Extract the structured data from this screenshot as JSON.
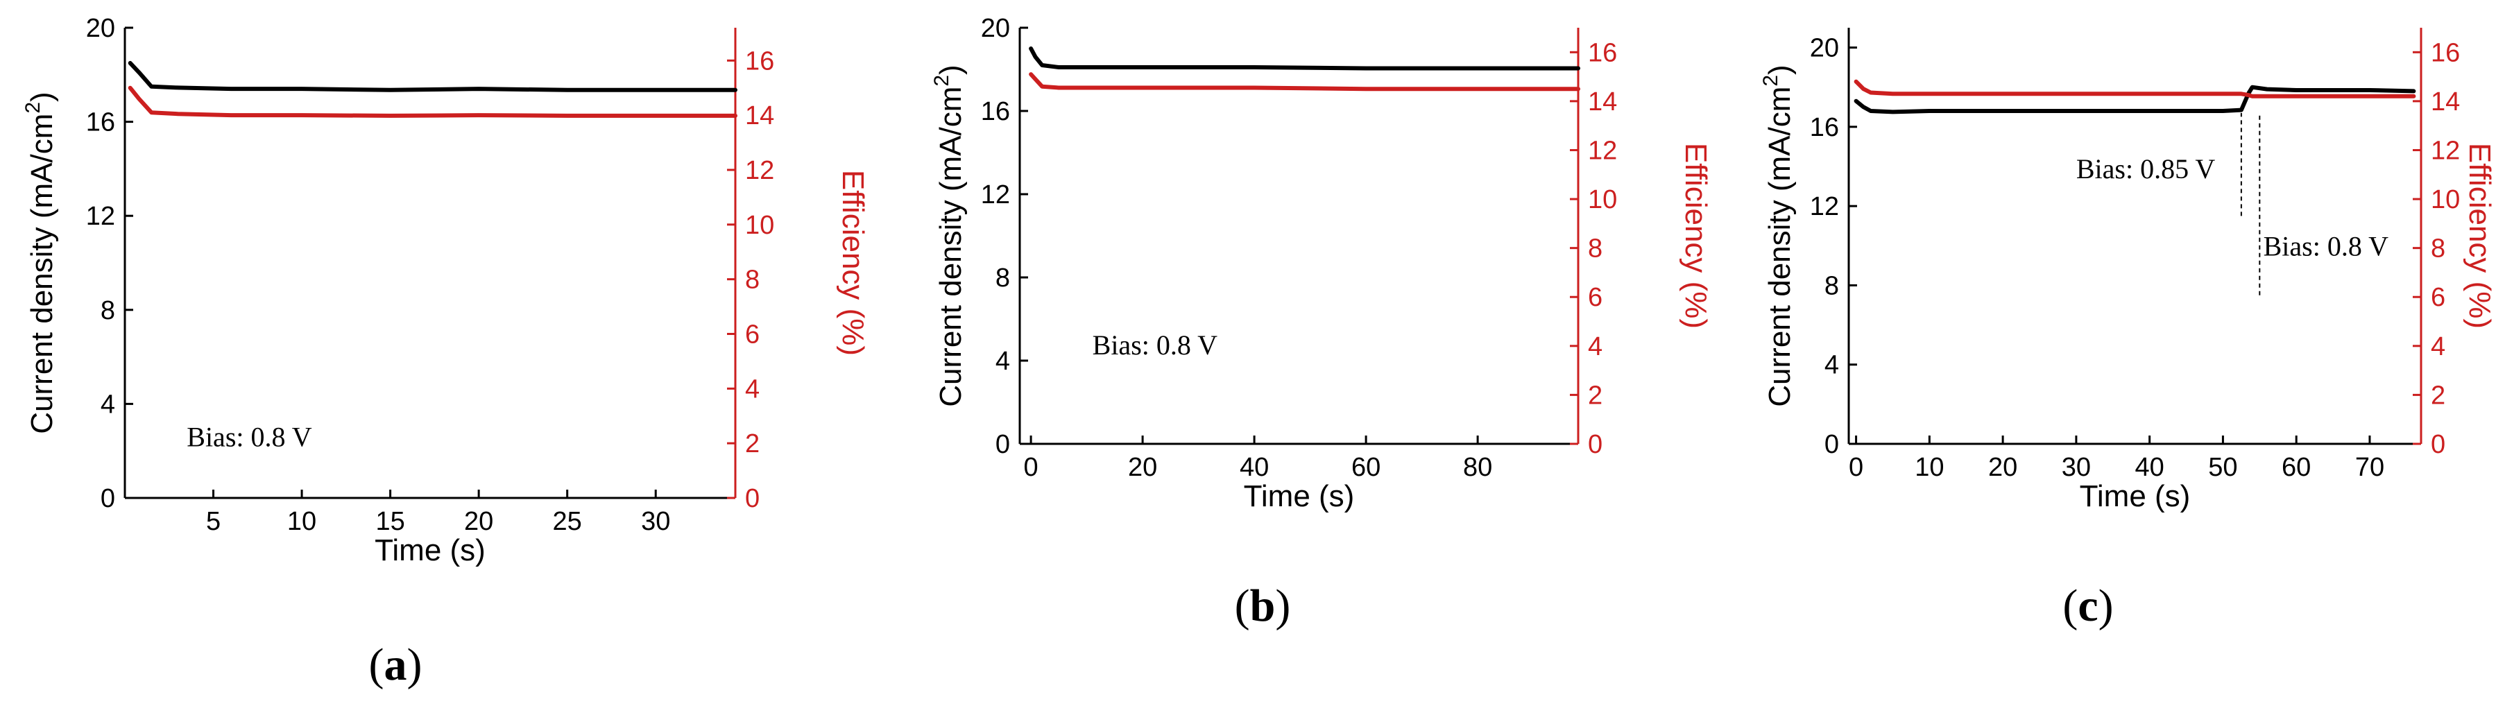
{
  "colors": {
    "current": "#000000",
    "efficiency": "#cc1f1f",
    "axis": "#000000"
  },
  "chart_data": [
    {
      "type": "line",
      "panel": "a",
      "panel_label": {
        "open": "(",
        "letter": "a",
        "close": ")"
      },
      "xlabel": "Time (s)",
      "ylabel_left": "Current density (mA/cm",
      "ylabel_left_sup": "2",
      "ylabel_left_close": ")",
      "ylabel_right": "Efficiency (%)",
      "xlim": [
        0,
        34.5
      ],
      "ylim_left": [
        0,
        20
      ],
      "ylim_right": [
        0,
        17.2
      ],
      "xticks": [
        5,
        10,
        15,
        20,
        25,
        30
      ],
      "yticks_left": [
        0,
        4,
        8,
        12,
        16,
        20
      ],
      "yticks_right": [
        0,
        2,
        4,
        6,
        8,
        10,
        12,
        14,
        16
      ],
      "annotations": [
        {
          "text": "Bias: 0.8 V",
          "x": 3.5,
          "y": 2.2
        }
      ],
      "vlines": [],
      "series": [
        {
          "name": "Current density",
          "axis": "left",
          "x": [
            0.3,
            0.8,
            1.5,
            3,
            6,
            10,
            15,
            20,
            25,
            30,
            34.5
          ],
          "y": [
            18.5,
            18.1,
            17.5,
            17.45,
            17.4,
            17.4,
            17.35,
            17.4,
            17.35,
            17.35,
            17.35
          ]
        },
        {
          "name": "Efficiency",
          "axis": "right",
          "x": [
            0.3,
            0.8,
            1.5,
            3,
            6,
            10,
            15,
            20,
            25,
            30,
            34.5
          ],
          "y": [
            15.0,
            14.6,
            14.1,
            14.05,
            14.0,
            14.0,
            13.98,
            14.0,
            13.98,
            13.98,
            13.98
          ]
        }
      ]
    },
    {
      "type": "line",
      "panel": "b",
      "panel_label": {
        "open": "(",
        "letter": "b",
        "close": ")"
      },
      "xlabel": "Time (s)",
      "ylabel_left": "Current density (mA/cm",
      "ylabel_left_sup": "2",
      "ylabel_left_close": ")",
      "ylabel_right": "Efficiency (%)",
      "xlim": [
        -2,
        98
      ],
      "ylim_left": [
        0,
        20
      ],
      "ylim_right": [
        0,
        17
      ],
      "xticks": [
        0,
        20,
        40,
        60,
        80
      ],
      "yticks_left": [
        0,
        4,
        8,
        12,
        16,
        20
      ],
      "yticks_right": [
        0,
        2,
        4,
        6,
        8,
        10,
        12,
        14,
        16
      ],
      "annotations": [
        {
          "text": "Bias: 0.8 V",
          "x": 11,
          "y": 4.3
        }
      ],
      "vlines": [],
      "series": [
        {
          "name": "Current density",
          "axis": "left",
          "x": [
            0,
            0.8,
            2,
            5,
            20,
            40,
            60,
            80,
            98
          ],
          "y": [
            19.0,
            18.6,
            18.2,
            18.1,
            18.1,
            18.1,
            18.05,
            18.05,
            18.05
          ]
        },
        {
          "name": "Efficiency",
          "axis": "right",
          "x": [
            0,
            0.8,
            2,
            5,
            20,
            40,
            60,
            80,
            98
          ],
          "y": [
            15.1,
            14.9,
            14.6,
            14.55,
            14.55,
            14.55,
            14.5,
            14.5,
            14.5
          ]
        }
      ]
    },
    {
      "type": "line",
      "panel": "c",
      "panel_label": {
        "open": "(",
        "letter": "c",
        "close": ")"
      },
      "xlabel": "Time (s)",
      "ylabel_left": "Current density (mA/cm",
      "ylabel_left_sup": "2",
      "ylabel_left_close": ")",
      "ylabel_right": "Efficiency (%)",
      "xlim": [
        -1,
        77
      ],
      "ylim_left": [
        0,
        21
      ],
      "ylim_right": [
        0,
        17
      ],
      "xticks": [
        0,
        10,
        20,
        30,
        40,
        50,
        60,
        70
      ],
      "yticks_left": [
        0,
        4,
        8,
        12,
        16,
        20
      ],
      "yticks_right": [
        0,
        2,
        4,
        6,
        8,
        10,
        12,
        14,
        16
      ],
      "annotations": [
        {
          "text": "Bias: 0.85 V",
          "x": 30,
          "y": 13.4
        },
        {
          "text": "Bias: 0.8 V",
          "x": 55.5,
          "y": 9.5
        }
      ],
      "vlines": [
        {
          "x": 52.5,
          "y_from": 11.5,
          "y_to": 16.7
        },
        {
          "x": 55,
          "y_from": 7.5,
          "y_to": 16.7
        }
      ],
      "series": [
        {
          "name": "Current density",
          "axis": "left",
          "x": [
            0,
            1,
            2,
            5,
            10,
            20,
            30,
            40,
            50,
            52.5,
            53.5,
            54,
            56,
            60,
            65,
            70,
            76
          ],
          "y": [
            17.3,
            17.0,
            16.8,
            16.75,
            16.8,
            16.8,
            16.8,
            16.8,
            16.8,
            16.85,
            17.7,
            18.0,
            17.9,
            17.85,
            17.85,
            17.85,
            17.8
          ]
        },
        {
          "name": "Efficiency",
          "axis": "right",
          "x": [
            0,
            1,
            2,
            5,
            10,
            20,
            30,
            40,
            50,
            52.5,
            53.5,
            54,
            56,
            60,
            65,
            70,
            76
          ],
          "y": [
            14.8,
            14.5,
            14.35,
            14.3,
            14.3,
            14.3,
            14.3,
            14.3,
            14.3,
            14.3,
            14.25,
            14.2,
            14.2,
            14.2,
            14.2,
            14.2,
            14.2
          ]
        }
      ]
    }
  ]
}
